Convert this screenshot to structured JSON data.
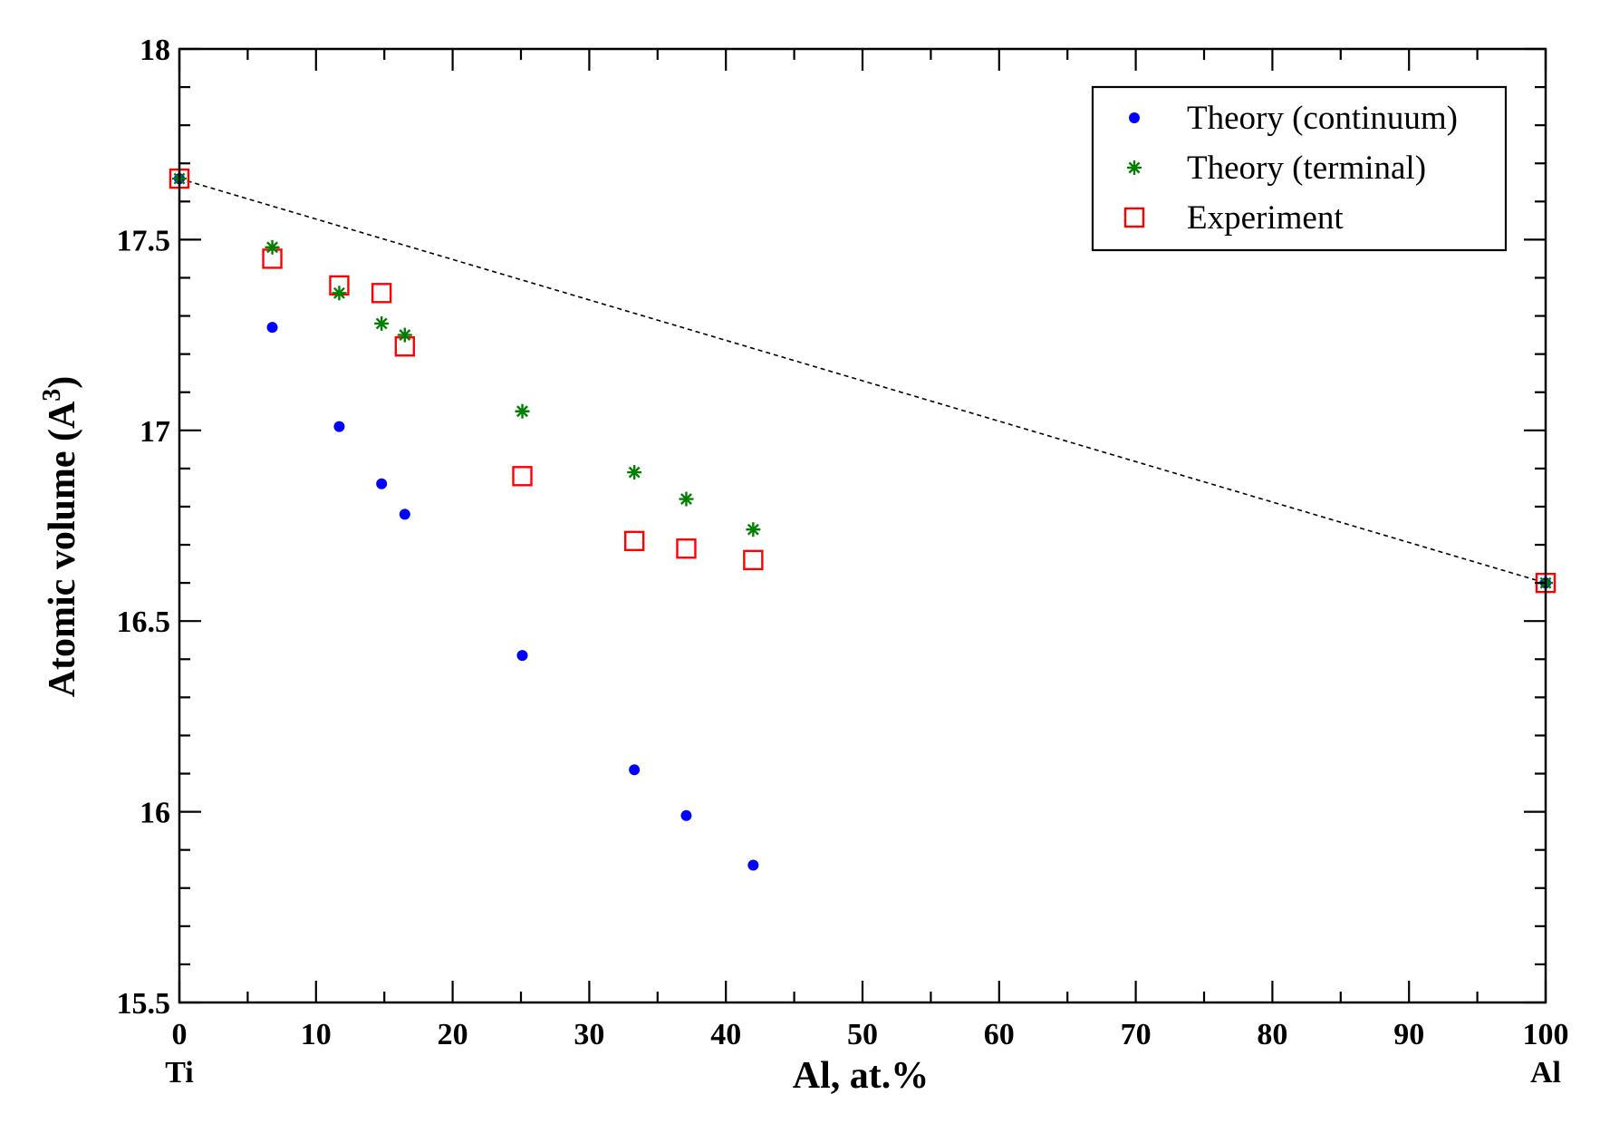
{
  "chart_data": {
    "type": "scatter",
    "xlabel": "Al, at.%",
    "ylabel": "Atomic volume (A",
    "ylabel_superscript": "3",
    "ylabel_suffix": ")",
    "xlim": [
      0,
      100
    ],
    "ylim": [
      15.5,
      18
    ],
    "x_ticks": [
      0,
      10,
      20,
      30,
      40,
      50,
      60,
      70,
      80,
      90,
      100
    ],
    "y_ticks": [
      15.5,
      16,
      16.5,
      17,
      17.5,
      18
    ],
    "x_tick_labels": [
      "0",
      "10",
      "20",
      "30",
      "40",
      "50",
      "60",
      "70",
      "80",
      "90",
      "100"
    ],
    "y_tick_labels": [
      "15.5",
      "16",
      "16.5",
      "17",
      "17.5",
      "18"
    ],
    "x_end_labels": {
      "left": "Ti",
      "right": "Al"
    },
    "grid": false,
    "legend_position": "top-right",
    "reference_line": {
      "style": "dashed",
      "color": "#000000",
      "points": [
        [
          0,
          17.66
        ],
        [
          100,
          16.6
        ]
      ]
    },
    "series": [
      {
        "name": "Theory (continuum)",
        "marker": "circle",
        "color": "#0000ff",
        "points": [
          [
            0,
            17.66
          ],
          [
            6.8,
            17.27
          ],
          [
            11.7,
            17.01
          ],
          [
            14.8,
            16.86
          ],
          [
            16.5,
            16.78
          ],
          [
            25.1,
            16.41
          ],
          [
            33.3,
            16.11
          ],
          [
            37.1,
            15.99
          ],
          [
            42,
            15.86
          ],
          [
            100,
            16.6
          ]
        ]
      },
      {
        "name": "Theory (terminal)",
        "marker": "asterisk",
        "color": "#008000",
        "points": [
          [
            0,
            17.66
          ],
          [
            6.8,
            17.48
          ],
          [
            11.7,
            17.36
          ],
          [
            14.8,
            17.28
          ],
          [
            16.5,
            17.25
          ],
          [
            25.1,
            17.05
          ],
          [
            33.3,
            16.89
          ],
          [
            37.1,
            16.82
          ],
          [
            42,
            16.74
          ],
          [
            100,
            16.6
          ]
        ]
      },
      {
        "name": "Experiment",
        "marker": "square",
        "color": "#ff0000",
        "points": [
          [
            0,
            17.66
          ],
          [
            6.8,
            17.45
          ],
          [
            11.7,
            17.38
          ],
          [
            14.8,
            17.36
          ],
          [
            16.5,
            17.22
          ],
          [
            25.1,
            16.88
          ],
          [
            33.3,
            16.71
          ],
          [
            37.1,
            16.69
          ],
          [
            42,
            16.66
          ],
          [
            100,
            16.6
          ]
        ]
      }
    ]
  }
}
